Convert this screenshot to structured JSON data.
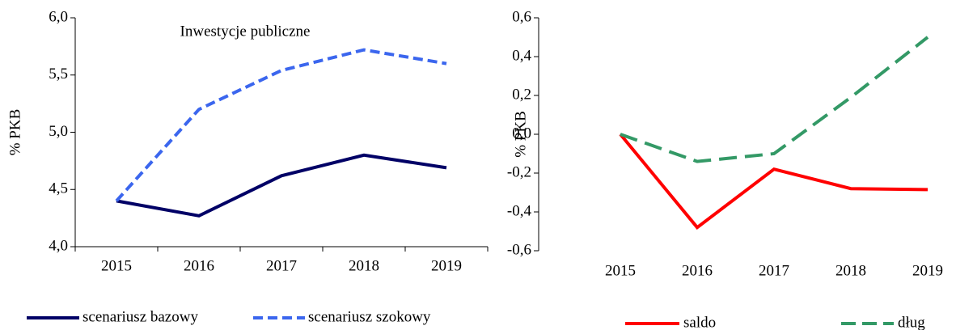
{
  "chart_data": [
    {
      "type": "line",
      "annotation": "Inwestycje publiczne",
      "y_label": "% PKB",
      "categories": [
        "2015",
        "2016",
        "2017",
        "2018",
        "2019"
      ],
      "series": [
        {
          "name": "scenariusz bazowy",
          "color": "#000066",
          "dash": false,
          "values": [
            4.4,
            4.27,
            4.62,
            4.8,
            4.69
          ]
        },
        {
          "name": "scenariusz szokowy",
          "color": "#3b66ee",
          "dash": true,
          "values": [
            4.4,
            5.2,
            5.54,
            5.72,
            5.6
          ]
        }
      ],
      "ylim": [
        4.0,
        6.0
      ],
      "yticks": [
        {
          "value": 4.0,
          "label": "4,0"
        },
        {
          "value": 4.5,
          "label": "4,5"
        },
        {
          "value": 5.0,
          "label": "5,0"
        },
        {
          "value": 5.5,
          "label": "5,5"
        },
        {
          "value": 6.0,
          "label": "6,0"
        }
      ]
    },
    {
      "type": "line",
      "y_label": "% PKB",
      "categories": [
        "2015",
        "2016",
        "2017",
        "2018",
        "2019"
      ],
      "series": [
        {
          "name": "saldo",
          "color": "#ff0000",
          "dash": false,
          "values": [
            0,
            -0.48,
            -0.18,
            -0.28,
            -0.285
          ]
        },
        {
          "name": "dług",
          "color": "#339966",
          "dash": true,
          "values": [
            0,
            -0.14,
            -0.1,
            0.19,
            0.5
          ]
        }
      ],
      "ylim": [
        -0.6,
        0.6
      ],
      "yticks": [
        {
          "value": -0.6,
          "label": "-0,6"
        },
        {
          "value": -0.4,
          "label": "-0,4"
        },
        {
          "value": -0.2,
          "label": "-0,2"
        },
        {
          "value": 0,
          "label": "0,0"
        },
        {
          "value": 0.2,
          "label": "0,2"
        },
        {
          "value": 0.4,
          "label": "0,4"
        },
        {
          "value": 0.6,
          "label": "0,6"
        }
      ]
    }
  ]
}
